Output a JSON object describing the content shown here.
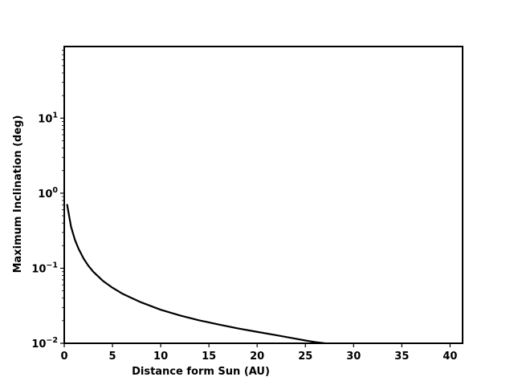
{
  "chart_data": {
    "type": "line",
    "title": "",
    "xlabel": "Distance form Sun (AU)",
    "ylabel": "Maximum Inclination (deg)",
    "xlim": [
      0,
      41.3
    ],
    "ylim": [
      0.01,
      90
    ],
    "yscale": "log",
    "grid": false,
    "x_ticks": [
      0,
      5,
      10,
      15,
      20,
      25,
      30,
      35,
      40
    ],
    "x_tick_labels": [
      "0",
      "5",
      "10",
      "15",
      "20",
      "25",
      "30",
      "35",
      "40"
    ],
    "y_ticks": [
      0.01,
      0.1,
      1,
      10
    ],
    "y_tick_labels": [
      {
        "base": "10",
        "exp": "−2"
      },
      {
        "base": "10",
        "exp": "−1"
      },
      {
        "base": "10",
        "exp": "0"
      },
      {
        "base": "10",
        "exp": "1"
      }
    ],
    "series": [
      {
        "color": "#000000",
        "x": [
          0.3,
          0.7,
          1.1,
          1.5,
          2,
          2.5,
          3,
          4,
          5,
          6,
          7,
          8,
          10,
          12,
          14,
          16,
          18,
          20,
          22,
          24,
          25,
          26,
          27,
          27.5
        ],
        "y": [
          0.7,
          0.36,
          0.24,
          0.18,
          0.135,
          0.108,
          0.09,
          0.068,
          0.055,
          0.046,
          0.04,
          0.035,
          0.028,
          0.0235,
          0.0202,
          0.0178,
          0.0158,
          0.0142,
          0.0128,
          0.0115,
          0.0109,
          0.0104,
          0.01,
          0.0098
        ]
      }
    ]
  }
}
